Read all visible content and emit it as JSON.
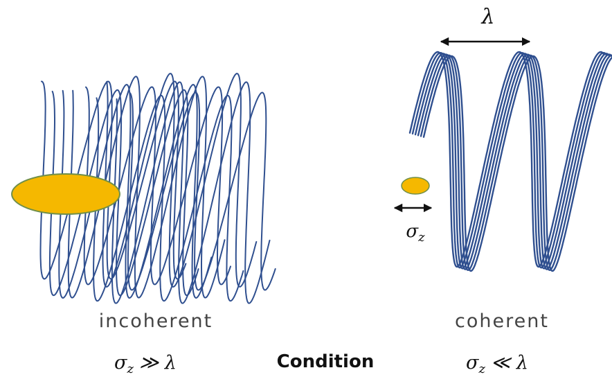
{
  "wavelength_label": "λ",
  "bunch_length_label": {
    "symbol": "σ",
    "subscript": "z"
  },
  "left_caption": "incoherent",
  "right_caption": "coherent",
  "left_condition": {
    "symbol": "σ",
    "subscript": "z",
    "relation": "≫ λ"
  },
  "condition_label": "Condition",
  "right_condition": {
    "symbol": "σ",
    "subscript": "z",
    "relation": "≪ λ"
  }
}
